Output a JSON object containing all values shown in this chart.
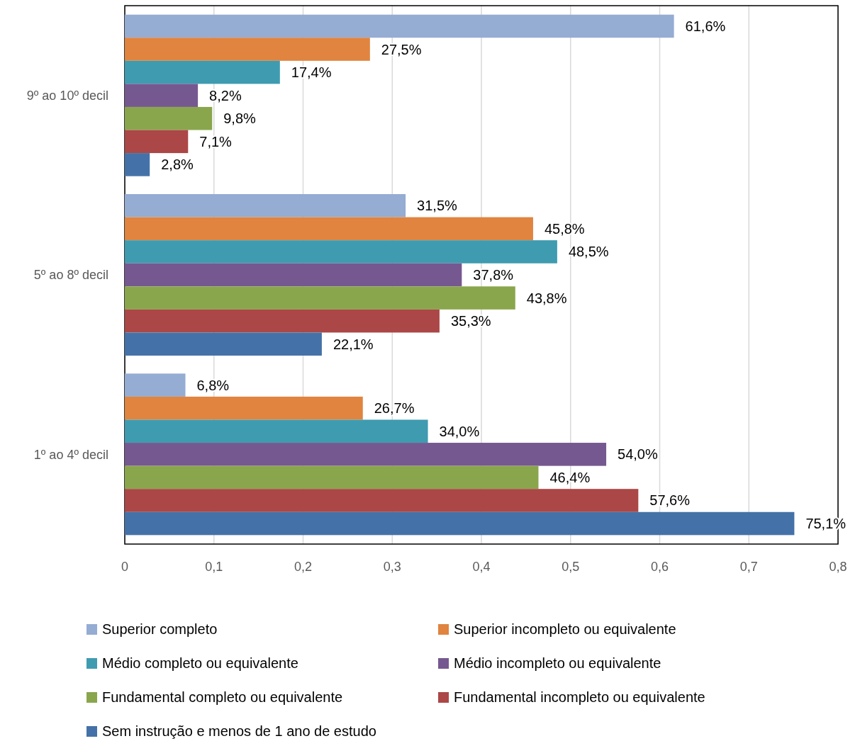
{
  "chart_data": {
    "type": "bar",
    "orientation": "horizontal",
    "categories": [
      "9º ao 10º decil",
      "5º ao 8º decil",
      "1º ao 4º decil"
    ],
    "xlim": [
      0,
      0.8
    ],
    "xticks": [
      0,
      {
        "value": 0.1,
        "label": "0,1"
      },
      {
        "value": 0.2,
        "label": "0,2"
      },
      {
        "value": 0.3,
        "label": "0,3"
      },
      {
        "value": 0.4,
        "label": "0,4"
      },
      {
        "value": 0.5,
        "label": "0,5"
      },
      {
        "value": 0.6,
        "label": "0,6"
      },
      {
        "value": 0.7,
        "label": "0,7"
      },
      {
        "value": 0.8,
        "label": "0,8"
      }
    ],
    "grid": "x",
    "legend": "bottom",
    "series": [
      {
        "name": "Superior completo",
        "color": "#95acd3",
        "values": [
          0.616,
          0.315,
          0.068
        ],
        "value_labels": [
          "61,6%",
          "31,5%",
          "6,8%"
        ]
      },
      {
        "name": "Superior incompleto ou equivalente",
        "color": "#e0843f",
        "values": [
          0.275,
          0.458,
          0.267
        ],
        "value_labels": [
          "27,5%",
          "45,8%",
          "26,7%"
        ]
      },
      {
        "name": "Médio completo ou equivalente",
        "color": "#3f9bb0",
        "values": [
          0.174,
          0.485,
          0.34
        ],
        "value_labels": [
          "17,4%",
          "48,5%",
          "34,0%"
        ]
      },
      {
        "name": "Médio incompleto ou equivalente",
        "color": "#765890",
        "values": [
          0.082,
          0.378,
          0.54
        ],
        "value_labels": [
          "8,2%",
          "37,8%",
          "54,0%"
        ]
      },
      {
        "name": "Fundamental completo ou equivalente",
        "color": "#8aa64d",
        "values": [
          0.098,
          0.438,
          0.464
        ],
        "value_labels": [
          "9,8%",
          "43,8%",
          "46,4%"
        ]
      },
      {
        "name": "Fundamental incompleto ou equivalente",
        "color": "#ab4746",
        "values": [
          0.071,
          0.353,
          0.576
        ],
        "value_labels": [
          "7,1%",
          "35,3%",
          "57,6%"
        ]
      },
      {
        "name": "Sem instrução e menos de 1 ano de estudo",
        "color": "#4472a8",
        "values": [
          0.028,
          0.221,
          0.751
        ],
        "value_labels": [
          "2,8%",
          "22,1%",
          "75,1%"
        ]
      }
    ]
  }
}
